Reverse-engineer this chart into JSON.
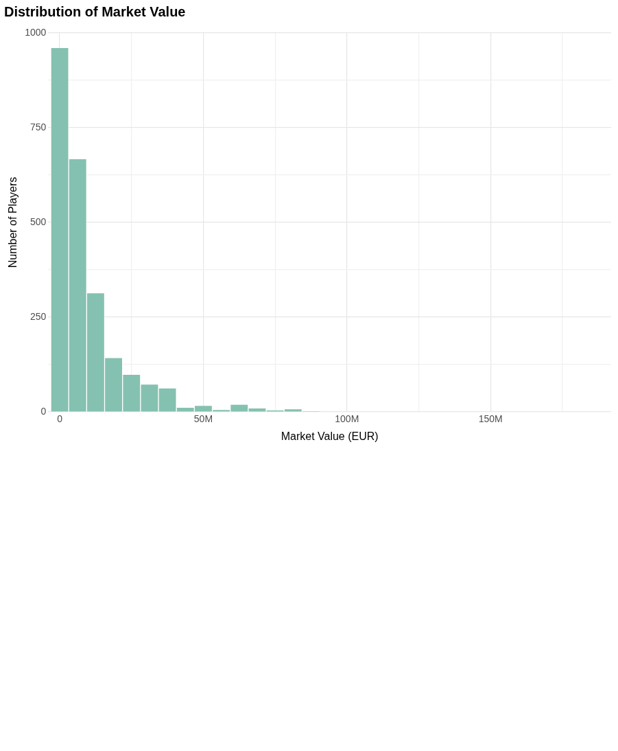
{
  "chart_data": {
    "type": "histogram",
    "title": "Distribution of Market Value",
    "xlabel": "Market Value (EUR)",
    "ylabel": "Number of Players",
    "bins": [
      -3.125,
      3.125,
      9.375,
      15.625,
      21.875,
      28.125,
      34.375,
      40.625,
      46.875,
      53.125,
      59.375,
      65.625,
      71.875,
      78.125,
      84.375,
      90.625,
      96.875,
      103.125,
      109.375,
      115.625,
      121.875,
      128.125,
      134.375,
      140.625,
      146.875,
      153.125,
      159.375,
      165.625,
      171.875,
      178.125,
      184.375,
      190.625
    ],
    "values": [
      960,
      667,
      313,
      142,
      98,
      72,
      62,
      11,
      16,
      5,
      19,
      9,
      4,
      7,
      2,
      0,
      0,
      0,
      0,
      0,
      0,
      0,
      0,
      0,
      0,
      0,
      0,
      0,
      0,
      0,
      1
    ],
    "color": "#85c1b0",
    "xlim": [
      -4,
      192
    ],
    "ylim": [
      0,
      1000
    ],
    "xticks": [
      {
        "value": 0,
        "label": "0"
      },
      {
        "value": 25,
        "label": null
      },
      {
        "value": 50,
        "label": "50M"
      },
      {
        "value": 75,
        "label": null
      },
      {
        "value": 100,
        "label": "100M"
      },
      {
        "value": 125,
        "label": null
      },
      {
        "value": 150,
        "label": "150M"
      },
      {
        "value": 175,
        "label": null
      }
    ],
    "yticks": [
      0,
      {
        "value": 125,
        "label": null
      },
      250,
      {
        "value": 375,
        "label": null
      },
      500,
      {
        "value": 625,
        "label": null
      },
      750,
      {
        "value": 875,
        "label": null
      },
      1000
    ],
    "grid": true
  }
}
